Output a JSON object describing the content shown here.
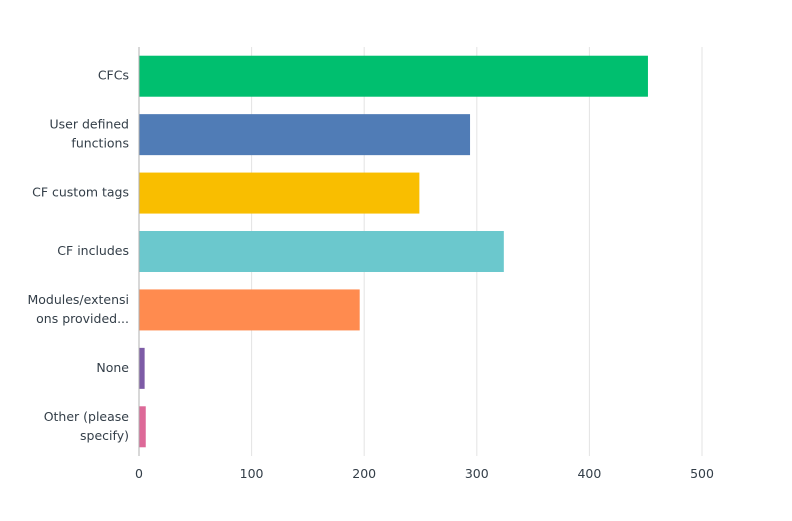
{
  "chart_data": {
    "type": "bar",
    "orientation": "horizontal",
    "categories": [
      [
        "CFCs"
      ],
      [
        "User defined",
        "functions"
      ],
      [
        "CF custom tags"
      ],
      [
        "CF includes"
      ],
      [
        "Modules/extensi",
        "ons provided..."
      ],
      [
        "None"
      ],
      [
        "Other (please",
        "specify)"
      ]
    ],
    "values": [
      452,
      294,
      249,
      324,
      196,
      5,
      6
    ],
    "colors": [
      "#00bf6f",
      "#507cb6",
      "#f9be00",
      "#6bc8cd",
      "#ff8b4f",
      "#7d5ba6",
      "#dd6998"
    ],
    "xlim": [
      0,
      500
    ],
    "xticks": [
      "0",
      "100",
      "200",
      "300",
      "400",
      "500"
    ],
    "grid": true,
    "legend": "none"
  }
}
